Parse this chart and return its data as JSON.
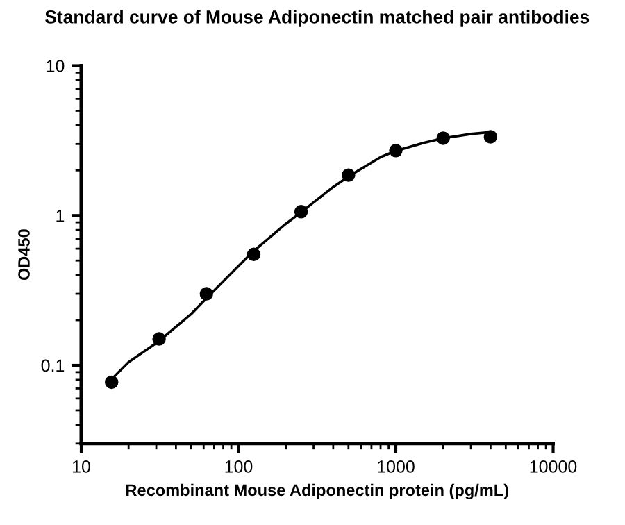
{
  "chart_data": {
    "type": "scatter",
    "title": "Standard curve of Mouse Adiponectin matched pair antibodies",
    "xlabel": "Recombinant Mouse Adiponectin protein (pg/mL)",
    "ylabel": "OD450",
    "log": "xy",
    "xlim": [
      10,
      10000
    ],
    "ylim": [
      0.03,
      10
    ],
    "xticks": [
      10,
      100,
      1000,
      10000
    ],
    "yticks": [
      0.1,
      1,
      10
    ],
    "marker": "circle",
    "grid": false,
    "series": [
      {
        "color": "#000000",
        "x": [
          15.6,
          31.25,
          62.5,
          125,
          250,
          500,
          1000,
          2000,
          4000
        ],
        "values": [
          0.077,
          0.15,
          0.3,
          0.55,
          1.06,
          1.86,
          2.71,
          3.28,
          3.35
        ]
      },
      {
        "type": "line",
        "color": "#000000",
        "marker": "none",
        "line_style": "solid",
        "x": [
          16,
          20,
          31.25,
          50,
          62.5,
          100,
          125,
          200,
          250,
          400,
          500,
          800,
          1000,
          1500,
          2000,
          3000,
          4000
        ],
        "values": [
          0.083,
          0.105,
          0.145,
          0.22,
          0.28,
          0.46,
          0.58,
          0.88,
          1.05,
          1.55,
          1.82,
          2.45,
          2.7,
          3.05,
          3.28,
          3.5,
          3.6
        ]
      }
    ]
  }
}
